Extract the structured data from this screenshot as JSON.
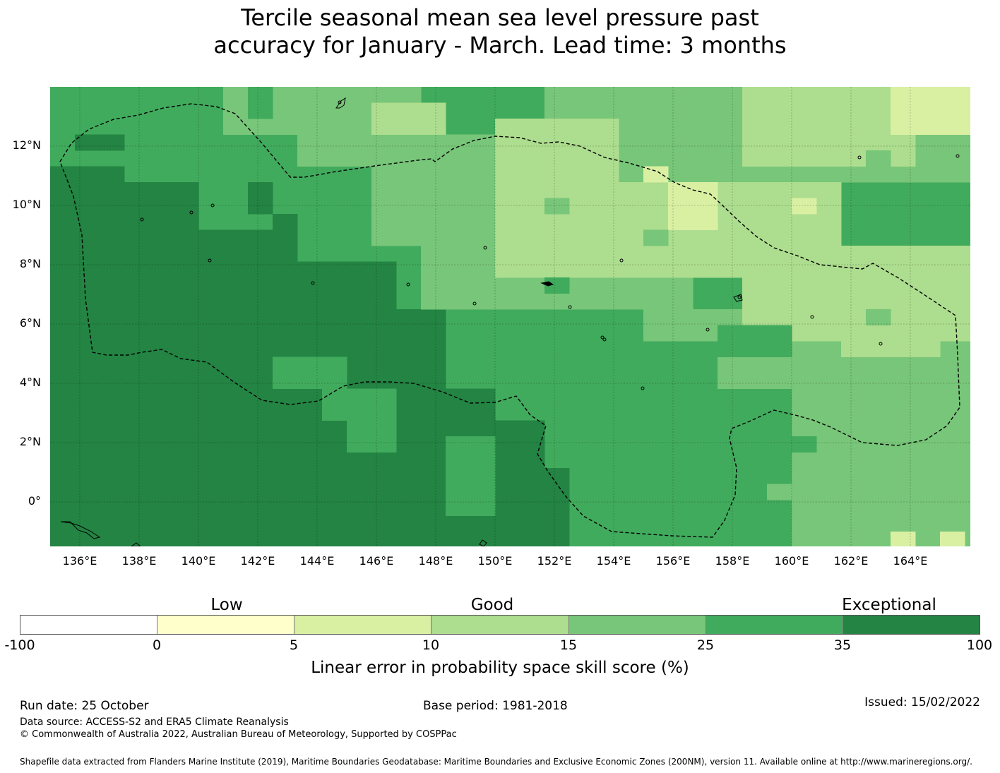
{
  "title": {
    "line1": "Tercile seasonal mean sea level pressure past",
    "line2": "accuracy for January - March. Lead time: 3 months"
  },
  "map": {
    "lat_labels": [
      "12°N",
      "10°N",
      "8°N",
      "6°N",
      "4°N",
      "2°N",
      "0°"
    ],
    "lon_labels": [
      "136°E",
      "138°E",
      "140°E",
      "142°E",
      "144°E",
      "146°E",
      "148°E",
      "150°E",
      "152°E",
      "154°E",
      "156°E",
      "158°E",
      "160°E",
      "162°E",
      "164°E"
    ]
  },
  "colorbar": {
    "categories": [
      "Low",
      "Good",
      "Exceptional"
    ],
    "ticks": [
      "-100",
      "0",
      "5",
      "10",
      "15",
      "25",
      "35",
      "100"
    ],
    "colors": [
      "#ffffff",
      "#ffffcc",
      "#d9f0a3",
      "#addd8e",
      "#78c679",
      "#41ab5d",
      "#238443"
    ],
    "title": "Linear error in probability space skill score (%)"
  },
  "footer": {
    "run_date": "Run date: 25 October",
    "base_period": "Base period: 1981-2018",
    "issued": "Issued: 15/02/2022",
    "data_source": "Data source: ACCESS-S2 and ERA5 Climate Reanalysis",
    "copyright": "© Commonwealth of Australia 2022, Australian Bureau of Meteorology, Supported by COSPPac",
    "shapefile": "Shapefile data extracted from Flanders Marine Institute (2019), Maritime Boundaries Geodatabase: Maritime Boundaries and Exclusive Economic Zones (200NM), version 11. Available online at http://www.marineregions.org/."
  }
}
